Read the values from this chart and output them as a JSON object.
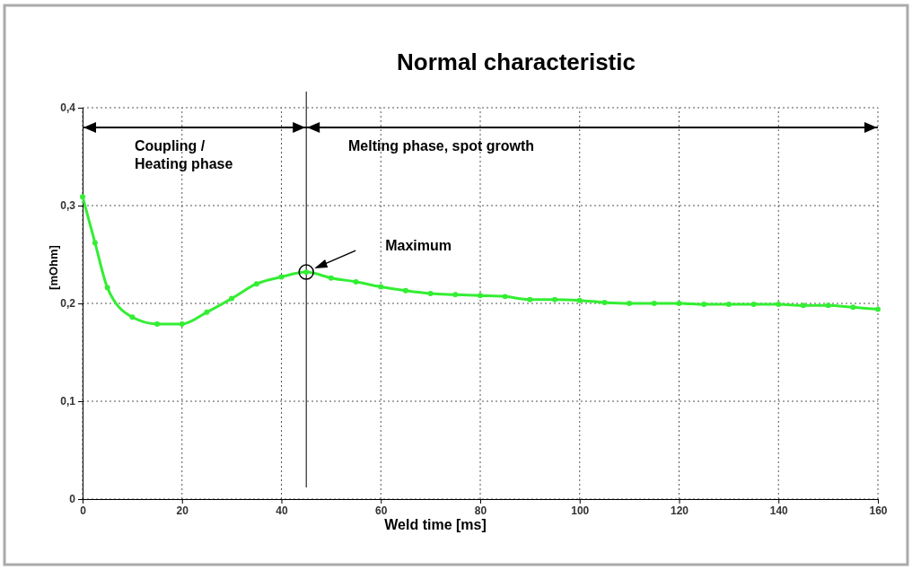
{
  "chart_data": {
    "type": "line",
    "title": "Normal characteristic",
    "xlabel": "Weld time [ms]",
    "ylabel": "[mOhm]",
    "x": [
      0,
      2.5,
      5,
      10,
      15,
      20,
      25,
      30,
      35,
      40,
      45,
      50,
      55,
      60,
      65,
      70,
      75,
      80,
      85,
      90,
      95,
      100,
      105,
      110,
      115,
      120,
      125,
      130,
      135,
      140,
      145,
      150,
      155,
      160
    ],
    "series": [
      {
        "color": "#33ee33",
        "values": [
          0.309,
          0.262,
          0.216,
          0.186,
          0.179,
          0.179,
          0.191,
          0.205,
          0.22,
          0.227,
          0.232,
          0.226,
          0.222,
          0.217,
          0.213,
          0.21,
          0.209,
          0.208,
          0.207,
          0.204,
          0.204,
          0.203,
          0.201,
          0.2,
          0.2,
          0.2,
          0.199,
          0.199,
          0.199,
          0.199,
          0.198,
          0.198,
          0.196,
          0.194
        ]
      }
    ],
    "xlim": [
      0,
      160
    ],
    "xticks": [
      0,
      20,
      40,
      60,
      80,
      100,
      120,
      140,
      160
    ],
    "ylim": [
      0,
      0.4
    ],
    "yticks": [
      0,
      {
        "value": 0.1,
        "label": "0,1"
      },
      {
        "value": 0.2,
        "label": "0,2"
      },
      {
        "value": 0.3,
        "label": "0,3"
      },
      {
        "value": 0.4,
        "label": "0,4"
      }
    ],
    "grid": true,
    "marker": "circle",
    "line_style": "solid",
    "ref_lines": [
      {
        "axis": "x",
        "value": 45,
        "color": "#000000",
        "line_style": "solid"
      }
    ],
    "annotations": [
      "Coupling /\nHeating phase",
      "Melting phase, spot growth",
      "Maximum"
    ]
  }
}
